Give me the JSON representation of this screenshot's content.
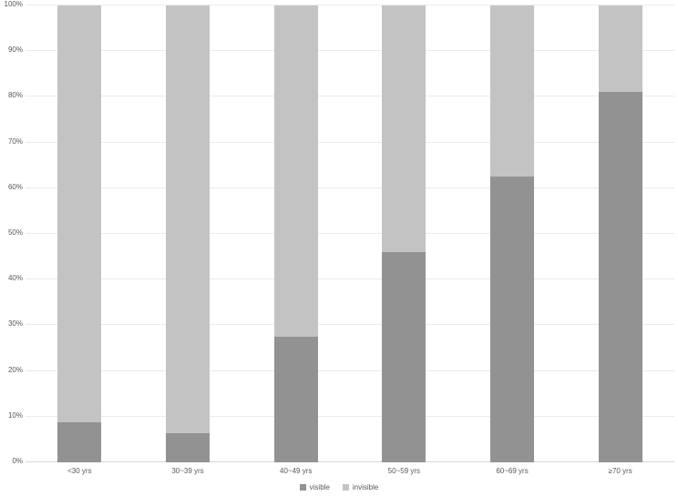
{
  "chart_data": {
    "type": "bar",
    "stacked": true,
    "percent_stacked": true,
    "title": "",
    "xlabel": "",
    "ylabel": "",
    "categories": [
      "<30 yrs",
      "30~39 yrs",
      "40~49 yrs",
      "50~59 yrs",
      "60~69 yrs",
      "≥70 yrs"
    ],
    "series": [
      {
        "name": "visible",
        "color": "#929292",
        "values": [
          8.8,
          6.3,
          27.4,
          46.1,
          62.6,
          81.0
        ]
      },
      {
        "name": "invisible",
        "color": "#c3c3c3",
        "values": [
          91.2,
          93.7,
          72.6,
          53.9,
          37.4,
          19.0
        ]
      }
    ],
    "ylim": [
      0,
      100
    ],
    "yticks": [
      "0%",
      "10%",
      "20%",
      "30%",
      "40%",
      "50%",
      "60%",
      "70%",
      "80%",
      "90%",
      "100%"
    ],
    "grid": true,
    "legend_position": "bottom",
    "legend_labels": [
      "visible",
      "invisible"
    ]
  },
  "style": {
    "background": "#ffffff",
    "gridline_color": "#ebebeb",
    "axis_line_color": "#d6d6d6",
    "text_color": "#595959"
  }
}
